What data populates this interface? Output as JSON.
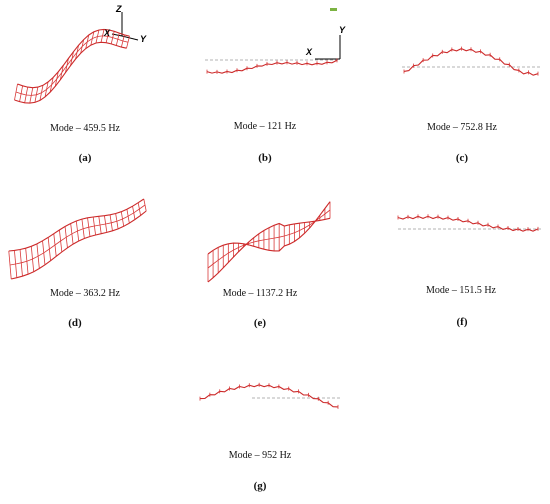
{
  "panels": [
    {
      "id": "a",
      "caption": "Mode – 459.5 Hz",
      "letter": "(a)"
    },
    {
      "id": "b",
      "caption": "Mode – 121 Hz",
      "letter": "(b)"
    },
    {
      "id": "c",
      "caption": "Mode – 752.8 Hz",
      "letter": "(c)"
    },
    {
      "id": "d",
      "caption": "Mode – 363.2 Hz",
      "letter": "(d)"
    },
    {
      "id": "e",
      "caption": "Mode – 1137.2 Hz",
      "letter": "(e)"
    },
    {
      "id": "f",
      "caption": "Mode – 151.5 Hz",
      "letter": "(f)"
    },
    {
      "id": "g",
      "caption": "Mode – 952 Hz",
      "letter": "(g)"
    }
  ],
  "axes_a": {
    "z": "Z",
    "x": "X",
    "y": "Y"
  },
  "axes_b": {
    "x": "X",
    "y": "Y"
  },
  "colors": {
    "mode_shape": "#d83a3a",
    "reference_line": "#9a9a9a",
    "axes": "#000000"
  }
}
